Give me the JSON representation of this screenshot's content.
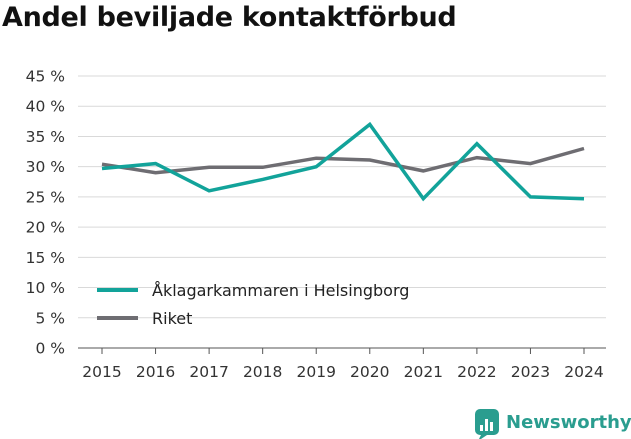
{
  "chart_data": {
    "type": "line",
    "title": "Andel beviljade kontaktförbud",
    "xlabel": "",
    "ylabel": "",
    "x": [
      "2015",
      "2016",
      "2017",
      "2018",
      "2019",
      "2020",
      "2021",
      "2022",
      "2023",
      "2024"
    ],
    "y_ticks": [
      "0 %",
      "5 %",
      "10 %",
      "15 %",
      "20 %",
      "25 %",
      "30 %",
      "35 %",
      "40 %",
      "45 %"
    ],
    "ylim": [
      0,
      45
    ],
    "grid": true,
    "legend_position": "bottom-left",
    "series": [
      {
        "name": "Åklagarkammaren i Helsingborg",
        "color": "#12a39a",
        "values": [
          29.7,
          30.5,
          26.0,
          27.9,
          30.0,
          37.0,
          24.7,
          33.8,
          25.0,
          24.7
        ]
      },
      {
        "name": "Riket",
        "color": "#6e6d72",
        "values": [
          30.4,
          29.0,
          29.9,
          29.9,
          31.4,
          31.1,
          29.3,
          31.5,
          30.5,
          33.0
        ]
      }
    ]
  },
  "brand": {
    "name": "Newsworthy",
    "logo_icon": "bar-chart-badge-icon",
    "color": "#2a9d8f"
  }
}
